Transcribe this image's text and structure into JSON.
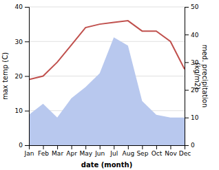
{
  "chart_data": {
    "type": "line",
    "categories": [
      "Jan",
      "Feb",
      "Mar",
      "Apr",
      "May",
      "Jun",
      "Jul",
      "Aug",
      "Sep",
      "Oct",
      "Nov",
      "Dec"
    ],
    "series": [
      {
        "type": "area",
        "axis": "y2",
        "color": "#b8c8ee",
        "values": [
          11,
          15,
          10,
          17,
          21,
          26,
          39,
          36,
          16,
          11,
          10,
          10
        ]
      },
      {
        "type": "line",
        "color": "#c0504d",
        "values": [
          19,
          20,
          24,
          29,
          34,
          35,
          35.5,
          36,
          33,
          33,
          30,
          22
        ]
      }
    ],
    "xlabel": "date (month)",
    "ylabel": "max temp (C)",
    "y2label": "med. precipitation\n(kg/m2)",
    "ylim": [
      0,
      40
    ],
    "yticks": [
      0,
      10,
      20,
      30,
      40
    ],
    "y2lim": [
      0,
      50
    ],
    "y2ticks": [
      0,
      10,
      20,
      30,
      40,
      50
    ],
    "grid": true
  }
}
